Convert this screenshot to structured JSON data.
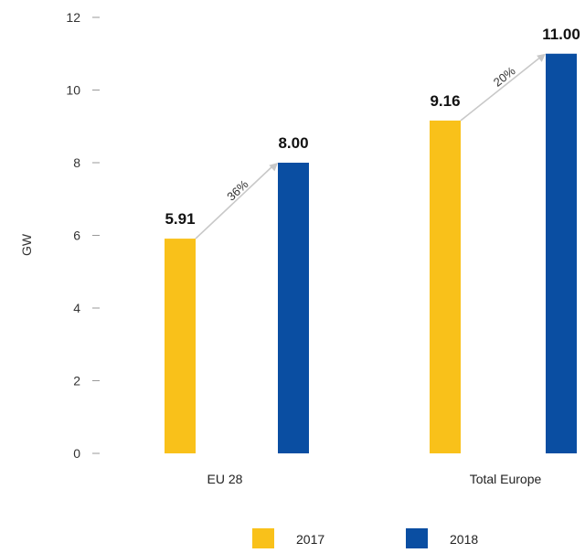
{
  "chart_data": {
    "type": "bar",
    "ylabel": "GW",
    "ylim": [
      0,
      12
    ],
    "yticks": [
      0,
      2,
      4,
      6,
      8,
      10,
      12
    ],
    "grid": false,
    "legend_position": "bottom",
    "categories": [
      "EU 28",
      "Total Europe"
    ],
    "series": [
      {
        "name": "2017",
        "color": "#f9c11a",
        "values": [
          5.91,
          9.16
        ],
        "labels": [
          "5.91",
          "9.16"
        ]
      },
      {
        "name": "2018",
        "color": "#0a4ea2",
        "values": [
          8.0,
          11.0
        ],
        "labels": [
          "8.00",
          "11.00"
        ]
      }
    ],
    "annotations": [
      {
        "category": "EU 28",
        "text": "36%"
      },
      {
        "category": "Total Europe",
        "text": "20%"
      }
    ],
    "arrow_color": "#c8c8c8",
    "axis_color": "#9a9a9a"
  }
}
